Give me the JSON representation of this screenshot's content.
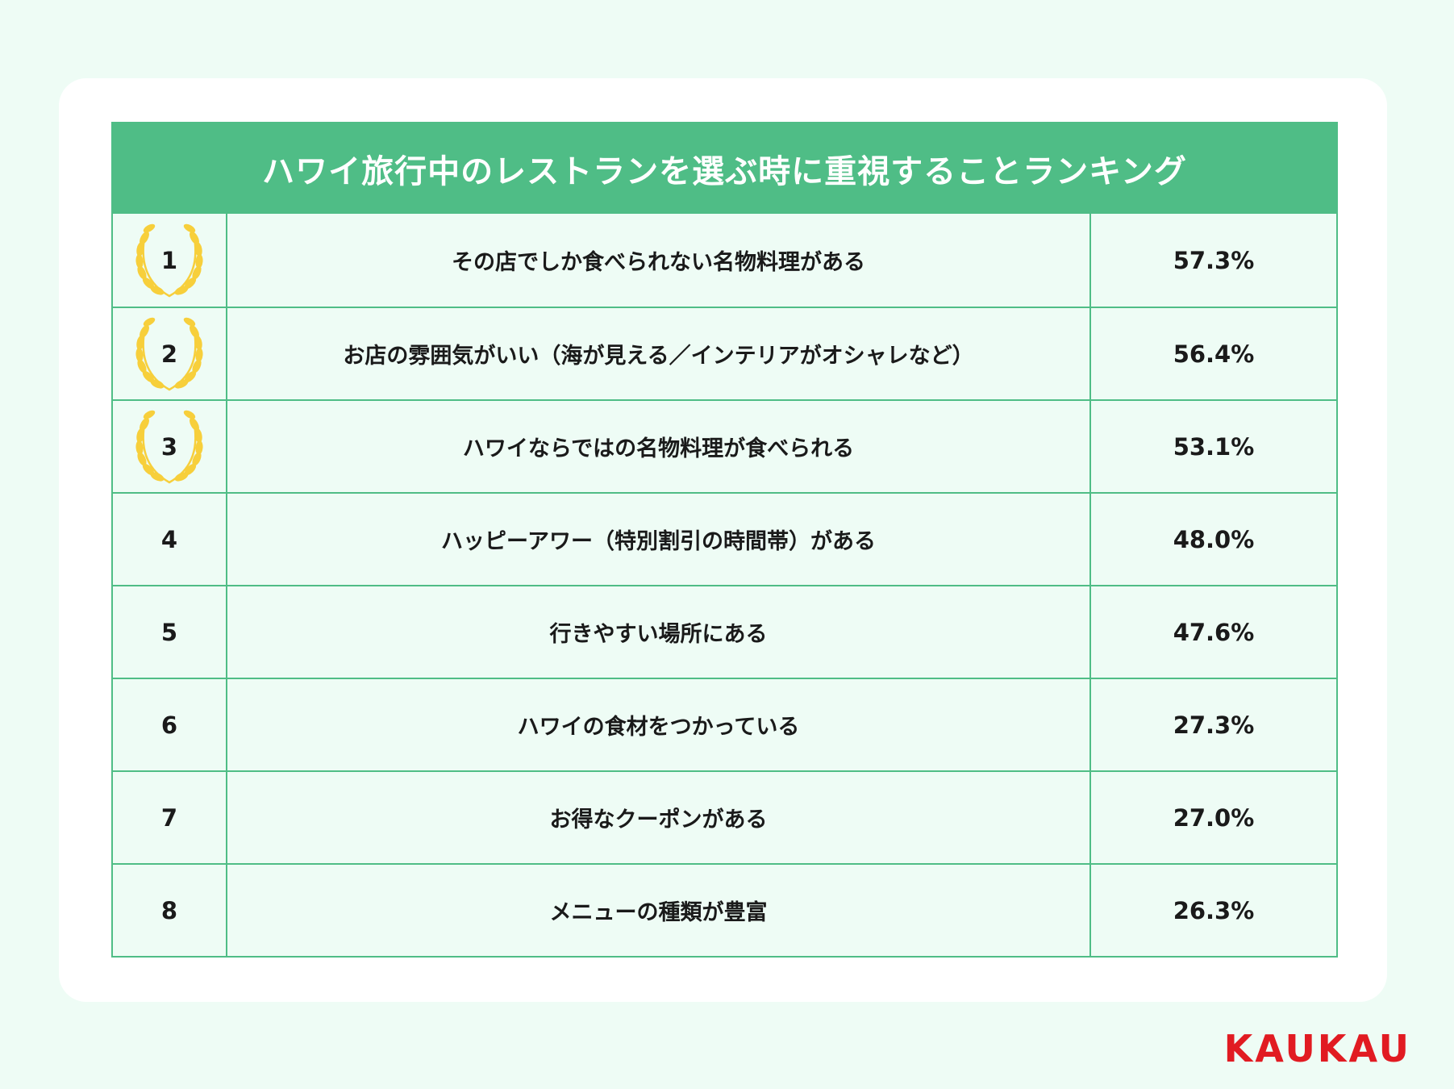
{
  "chart_data": {
    "type": "table",
    "title": "ハワイ旅行中のレストランを選ぶ時に重視することランキング",
    "rows": [
      {
        "rank": "1",
        "item": "その店でしか食べられない名物料理がある",
        "value_label": "57.3%",
        "value": 57.3,
        "laurel": true
      },
      {
        "rank": "2",
        "item": "お店の雰囲気がいい（海が見える／インテリアがオシャレなど）",
        "value_label": "56.4%",
        "value": 56.4,
        "laurel": true
      },
      {
        "rank": "3",
        "item": "ハワイならではの名物料理が食べられる",
        "value_label": "53.1%",
        "value": 53.1,
        "laurel": true
      },
      {
        "rank": "4",
        "item": "ハッピーアワー（特別割引の時間帯）がある",
        "value_label": "48.0%",
        "value": 48.0,
        "laurel": false
      },
      {
        "rank": "5",
        "item": "行きやすい場所にある",
        "value_label": "47.6%",
        "value": 47.6,
        "laurel": false
      },
      {
        "rank": "6",
        "item": "ハワイの食材をつかっている",
        "value_label": "27.3%",
        "value": 27.3,
        "laurel": false
      },
      {
        "rank": "7",
        "item": "お得なクーポンがある",
        "value_label": "27.0%",
        "value": 27.0,
        "laurel": false
      },
      {
        "rank": "8",
        "item": "メニューの種類が豊富",
        "value_label": "26.3%",
        "value": 26.3,
        "laurel": false
      }
    ]
  },
  "brand": {
    "logo_text": "KAUKAU",
    "logo_color": "#e11b22"
  },
  "colors": {
    "accent": "#4fbd86",
    "laurel": "#f7cf3b",
    "row_bg": "#eefcf5"
  },
  "icons": {
    "top_rank": "laurel-wreath-icon"
  }
}
